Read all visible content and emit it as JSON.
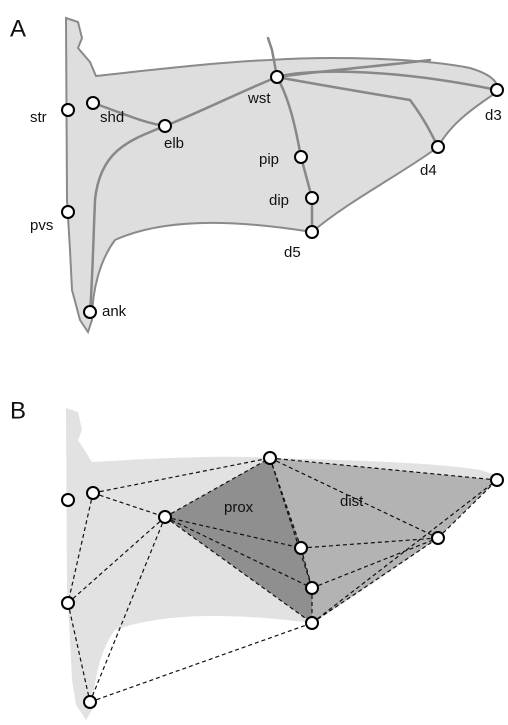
{
  "panels": [
    {
      "label": "A",
      "landmarks": [
        "str",
        "shd",
        "elb",
        "wst",
        "pip",
        "dip",
        "d5",
        "d4",
        "d3",
        "pvs",
        "ank"
      ]
    },
    {
      "label": "B",
      "regions": [
        "prox",
        "dist"
      ]
    }
  ]
}
